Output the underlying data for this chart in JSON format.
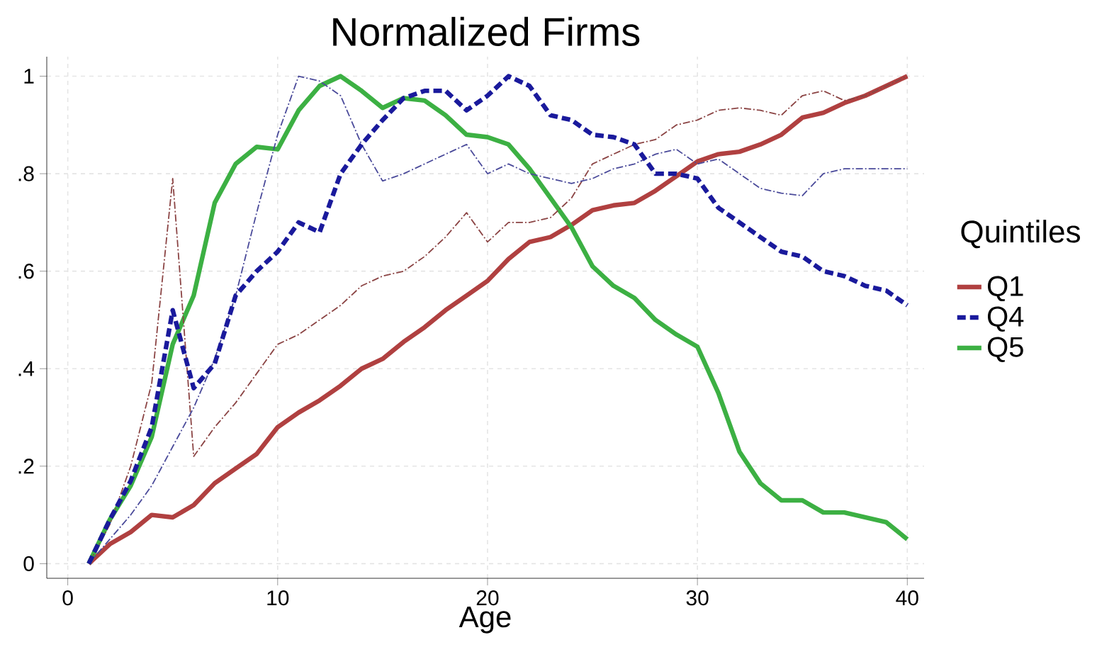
{
  "chart_data": {
    "type": "line",
    "title": "Normalized Firms",
    "xlabel": "Age",
    "legend_title": "Quintiles",
    "legend": "right",
    "grid": true,
    "x": [
      1,
      2,
      3,
      4,
      5,
      6,
      7,
      8,
      9,
      10,
      11,
      12,
      13,
      14,
      15,
      16,
      17,
      18,
      19,
      20,
      21,
      22,
      23,
      24,
      25,
      26,
      27,
      28,
      29,
      30,
      31,
      32,
      33,
      34,
      35,
      36,
      37,
      38,
      39,
      40
    ],
    "xlim": [
      -1,
      40.8
    ],
    "ylim": [
      -0.03,
      1.04
    ],
    "xticks": [
      0,
      10,
      20,
      30,
      40
    ],
    "yticks": [
      {
        "value": 0,
        "label": "0"
      },
      {
        "value": 0.2,
        "label": ".2"
      },
      {
        "value": 0.4,
        "label": ".4"
      },
      {
        "value": 0.6,
        "label": ".6"
      },
      {
        "value": 0.8,
        "label": ".8"
      },
      {
        "value": 1,
        "label": "1"
      }
    ],
    "series": [
      {
        "color": "#8b4444",
        "line_style": "dashdot",
        "values": [
          0,
          0.08,
          0.2,
          0.37,
          0.79,
          0.22,
          0.28,
          0.33,
          0.39,
          0.45,
          0.47,
          0.5,
          0.53,
          0.57,
          0.59,
          0.6,
          0.63,
          0.67,
          0.72,
          0.66,
          0.7,
          0.7,
          0.71,
          0.75,
          0.82,
          0.84,
          0.86,
          0.87,
          0.9,
          0.91,
          0.93,
          0.935,
          0.93,
          0.92,
          0.96,
          0.97,
          0.95,
          0.96,
          0.98,
          1.0
        ]
      },
      {
        "color": "#4a4a9a",
        "line_style": "dashdot",
        "values": [
          0,
          0.05,
          0.1,
          0.16,
          0.24,
          0.32,
          0.42,
          0.55,
          0.72,
          0.88,
          1.0,
          0.99,
          0.96,
          0.86,
          0.785,
          0.8,
          0.82,
          0.84,
          0.86,
          0.8,
          0.82,
          0.8,
          0.79,
          0.78,
          0.79,
          0.81,
          0.82,
          0.84,
          0.85,
          0.82,
          0.83,
          0.8,
          0.77,
          0.76,
          0.755,
          0.8,
          0.81,
          0.81,
          0.81,
          0.81
        ]
      },
      {
        "name": "Q1",
        "color": "#b04040",
        "line_style": "solid",
        "values": [
          0,
          0.04,
          0.065,
          0.1,
          0.095,
          0.12,
          0.165,
          0.195,
          0.225,
          0.28,
          0.31,
          0.335,
          0.365,
          0.4,
          0.42,
          0.455,
          0.485,
          0.52,
          0.55,
          0.58,
          0.625,
          0.66,
          0.67,
          0.695,
          0.725,
          0.735,
          0.74,
          0.765,
          0.795,
          0.825,
          0.84,
          0.845,
          0.86,
          0.88,
          0.915,
          0.925,
          0.945,
          0.96,
          0.98,
          1.0
        ]
      },
      {
        "name": "Q4",
        "color": "#1a1a9c",
        "line_style": "dashed",
        "values": [
          0,
          0.09,
          0.17,
          0.28,
          0.52,
          0.36,
          0.41,
          0.55,
          0.6,
          0.64,
          0.7,
          0.68,
          0.8,
          0.86,
          0.91,
          0.955,
          0.97,
          0.97,
          0.93,
          0.96,
          1.0,
          0.98,
          0.92,
          0.91,
          0.88,
          0.875,
          0.86,
          0.8,
          0.8,
          0.79,
          0.73,
          0.7,
          0.67,
          0.64,
          0.63,
          0.6,
          0.59,
          0.57,
          0.56,
          0.53
        ]
      },
      {
        "name": "Q5",
        "color": "#3cb043",
        "line_style": "solid",
        "values": [
          0,
          0.09,
          0.16,
          0.26,
          0.45,
          0.55,
          0.74,
          0.82,
          0.855,
          0.85,
          0.93,
          0.98,
          1.0,
          0.97,
          0.935,
          0.955,
          0.95,
          0.92,
          0.88,
          0.875,
          0.86,
          0.81,
          0.75,
          0.69,
          0.61,
          0.57,
          0.545,
          0.5,
          0.47,
          0.445,
          0.35,
          0.23,
          0.165,
          0.13,
          0.13,
          0.105,
          0.105,
          0.095,
          0.085,
          0.05
        ]
      }
    ]
  }
}
